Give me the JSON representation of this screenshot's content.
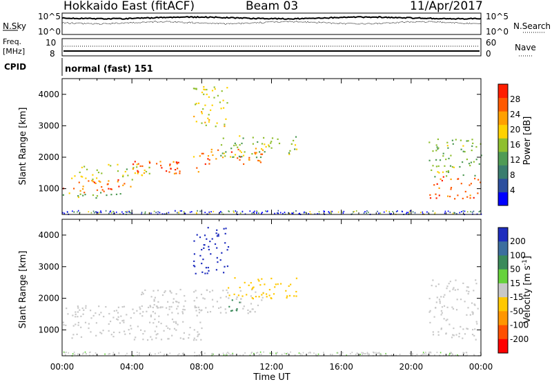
{
  "header": {
    "radar": "Hokkaido East (fitACF)",
    "beam": "Beam 03",
    "date": "11/Apr/2017"
  },
  "noise_panel": {
    "left_label": "N.Sky",
    "right_label": "N.Search",
    "tick_top": "10^5",
    "tick_bottom": "10^0"
  },
  "freq_panel": {
    "left_label_line1": "Freq.",
    "left_label_line2": "[MHz]",
    "left_ticks": [
      "10",
      "8"
    ],
    "right_label": "Nave",
    "right_ticks": [
      "60",
      "0"
    ]
  },
  "cpid": {
    "label": "CPID",
    "value": "normal (fast) 151"
  },
  "colors": {
    "power_scale": [
      "#0000ff",
      "#2c4f9e",
      "#3a7d6e",
      "#4f9b55",
      "#8fbf2f",
      "#ffd200",
      "#ffa000",
      "#ff5a00",
      "#ff1e00"
    ],
    "velocity_scale": [
      "#1e2dbe",
      "#3c6e9e",
      "#3a8a5a",
      "#66d23c",
      "#c8c8c8",
      "#ffc800",
      "#ff9600",
      "#ff5000",
      "#ff0000"
    ]
  },
  "chart_data": [
    {
      "type": "heatmap",
      "name": "Power",
      "ylabel": "Slant Range [km]",
      "yticks": [
        "1000",
        "2000",
        "3000",
        "4000"
      ],
      "ylim": [
        180,
        4500
      ],
      "colorbar_label": "Power [dB]",
      "colorbar_ticks": [
        "4",
        "8",
        "12",
        "16",
        "20",
        "24",
        "28"
      ],
      "colorbar_range": [
        0,
        32
      ],
      "x_units": "hours UT",
      "scatter_bands": [
        {
          "t_start": 0.0,
          "t_end": 4.0,
          "r_start": 900,
          "r_end": 1300,
          "value": 26
        },
        {
          "t_start": 0.0,
          "t_end": 4.0,
          "r_start": 700,
          "r_end": 900,
          "value": 14
        },
        {
          "t_start": 0.5,
          "t_end": 5.0,
          "r_start": 1300,
          "r_end": 1800,
          "value": 18
        },
        {
          "t_start": 4.0,
          "t_end": 8.5,
          "r_start": 1500,
          "r_end": 1900,
          "value": 27
        },
        {
          "t_start": 7.5,
          "t_end": 11.5,
          "r_start": 1800,
          "r_end": 2300,
          "value": 25
        },
        {
          "t_start": 9.0,
          "t_end": 13.5,
          "r_start": 2000,
          "r_end": 2700,
          "value": 16
        },
        {
          "t_start": 7.5,
          "t_end": 9.5,
          "r_start": 3000,
          "r_end": 4300,
          "value": 18
        },
        {
          "t_start": 21.0,
          "t_end": 24.0,
          "r_start": 700,
          "r_end": 1400,
          "value": 27
        },
        {
          "t_start": 21.0,
          "t_end": 24.0,
          "r_start": 1400,
          "r_end": 2600,
          "value": 15
        }
      ]
    },
    {
      "type": "heatmap",
      "name": "Velocity",
      "ylabel": "Slant Range [km]",
      "yticks": [
        "1000",
        "2000",
        "3000",
        "4000"
      ],
      "ylim": [
        180,
        4500
      ],
      "colorbar_label": "Velocity [m s^-1]",
      "colorbar_ticks": [
        "200",
        "100",
        "50",
        "15",
        "-15",
        "-50",
        "-100",
        "-200"
      ],
      "x_units": "hours UT",
      "scatter_bands": [
        {
          "t_start": 0.0,
          "t_end": 8.0,
          "r_start": 700,
          "r_end": 1800,
          "value": 0
        },
        {
          "t_start": 4.0,
          "t_end": 11.5,
          "r_start": 1500,
          "r_end": 2300,
          "value": -10
        },
        {
          "t_start": 9.5,
          "t_end": 10.2,
          "r_start": 1500,
          "r_end": 2000,
          "value": 60
        },
        {
          "t_start": 9.0,
          "t_end": 13.5,
          "r_start": 2000,
          "r_end": 2700,
          "value": -20
        },
        {
          "t_start": 7.5,
          "t_end": 9.5,
          "r_start": 2800,
          "r_end": 4300,
          "value": 220
        },
        {
          "t_start": 21.0,
          "t_end": 24.0,
          "r_start": 700,
          "r_end": 2600,
          "value": 0
        }
      ]
    }
  ],
  "xaxis": {
    "ticks": [
      "00:00",
      "04:00",
      "08:00",
      "12:00",
      "16:00",
      "20:00",
      "00:00"
    ],
    "label": "Time UT"
  }
}
